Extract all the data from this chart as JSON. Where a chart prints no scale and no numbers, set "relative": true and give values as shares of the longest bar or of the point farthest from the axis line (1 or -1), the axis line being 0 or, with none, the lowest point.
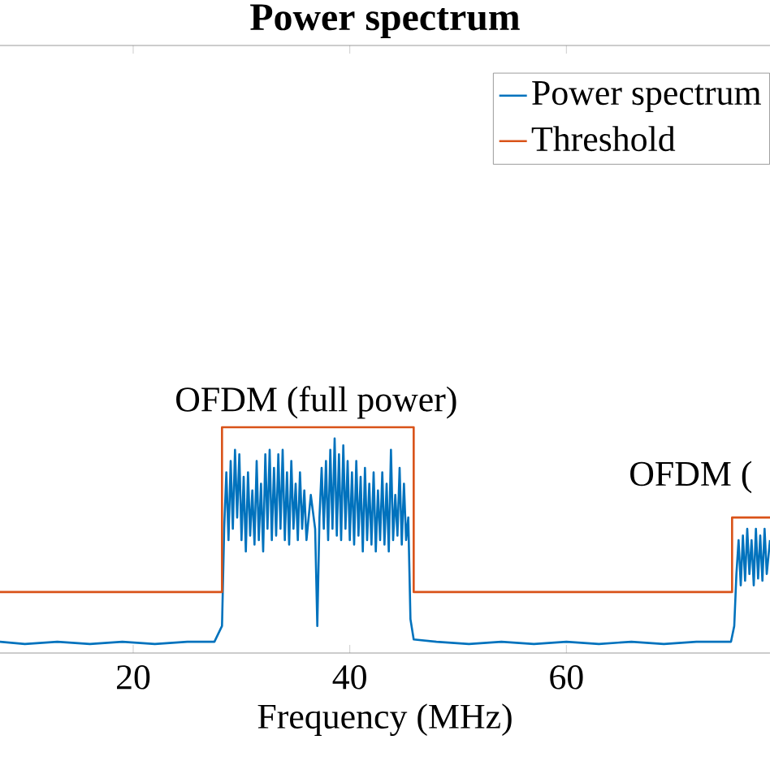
{
  "chart_data": {
    "type": "line",
    "title": "Power spectrum",
    "xlabel": "Frequency (MHz)",
    "relative": true,
    "xlim": [
      7.7,
      78.8
    ],
    "xticks": [
      20,
      40,
      60
    ],
    "tick_labels": "x",
    "grid": false,
    "legend": "top right",
    "marker": "none",
    "line_style": "solid",
    "annotations": [
      {
        "text": "OFDM (full power)",
        "x": 36.9,
        "y": 1
      },
      "OFDM ("
    ],
    "series": [
      {
        "name": "Power spectrum",
        "color": "#0072bd",
        "x": [
          7.7,
          10,
          13,
          16,
          19,
          22,
          25,
          27.5,
          28.2,
          28.4,
          28.6,
          28.8,
          29.0,
          29.2,
          29.4,
          29.6,
          29.8,
          30.0,
          30.2,
          30.4,
          30.6,
          30.8,
          31.0,
          31.2,
          31.4,
          31.6,
          31.8,
          32.0,
          32.2,
          32.4,
          32.6,
          32.8,
          33.0,
          33.2,
          33.4,
          33.6,
          33.8,
          34.0,
          34.2,
          34.4,
          34.6,
          34.8,
          35.0,
          35.2,
          35.4,
          35.6,
          35.8,
          36.0,
          36.4,
          36.8,
          37.0,
          37.2,
          37.4,
          37.6,
          37.8,
          38.0,
          38.2,
          38.4,
          38.6,
          38.8,
          39.0,
          39.2,
          39.4,
          39.6,
          39.8,
          40.0,
          40.2,
          40.4,
          40.6,
          40.8,
          41.0,
          41.2,
          41.4,
          41.6,
          41.8,
          42.0,
          42.2,
          42.4,
          42.6,
          42.8,
          43.0,
          43.2,
          43.4,
          43.6,
          43.8,
          44.0,
          44.2,
          44.4,
          44.6,
          44.8,
          45.0,
          45.2,
          45.4,
          45.6,
          45.9,
          48,
          51,
          54,
          57,
          60,
          63,
          66,
          69,
          72,
          75.2,
          75.5,
          75.7,
          75.9,
          76.1,
          76.3,
          76.5,
          76.7,
          76.9,
          77.1,
          77.3,
          77.5,
          77.7,
          77.9,
          78.1,
          78.3,
          78.5,
          78.8
        ],
        "values": [
          0.05,
          0.04,
          0.05,
          0.04,
          0.05,
          0.04,
          0.05,
          0.05,
          0.12,
          0.55,
          0.8,
          0.5,
          0.85,
          0.55,
          0.9,
          0.6,
          0.88,
          0.5,
          0.78,
          0.45,
          0.8,
          0.52,
          0.72,
          0.48,
          0.85,
          0.5,
          0.75,
          0.45,
          0.88,
          0.55,
          0.9,
          0.5,
          0.82,
          0.52,
          0.88,
          0.55,
          0.9,
          0.5,
          0.8,
          0.48,
          0.85,
          0.55,
          0.75,
          0.5,
          0.8,
          0.55,
          0.72,
          0.5,
          0.7,
          0.55,
          0.12,
          0.6,
          0.82,
          0.55,
          0.85,
          0.5,
          0.9,
          0.55,
          0.95,
          0.52,
          0.88,
          0.5,
          0.92,
          0.55,
          0.85,
          0.5,
          0.8,
          0.48,
          0.85,
          0.52,
          0.78,
          0.45,
          0.82,
          0.5,
          0.75,
          0.48,
          0.8,
          0.45,
          0.72,
          0.5,
          0.8,
          0.48,
          0.75,
          0.45,
          0.9,
          0.5,
          0.7,
          0.52,
          0.82,
          0.48,
          0.75,
          0.5,
          0.6,
          0.15,
          0.06,
          0.05,
          0.04,
          0.05,
          0.04,
          0.05,
          0.04,
          0.05,
          0.04,
          0.05,
          0.05,
          0.12,
          0.35,
          0.5,
          0.3,
          0.52,
          0.32,
          0.55,
          0.35,
          0.5,
          0.3,
          0.55,
          0.33,
          0.52,
          0.32,
          0.55,
          0.35,
          0.5
        ]
      },
      {
        "name": "Threshold",
        "color": "#d95319",
        "x": [
          7.7,
          28.2,
          28.2,
          45.9,
          45.9,
          75.3,
          75.3,
          78.8
        ],
        "values": [
          0.27,
          0.27,
          1,
          1,
          0.27,
          0.27,
          0.6,
          0.6
        ]
      }
    ]
  }
}
